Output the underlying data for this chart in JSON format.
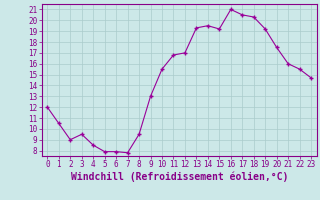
{
  "x": [
    0,
    1,
    2,
    3,
    4,
    5,
    6,
    7,
    8,
    9,
    10,
    11,
    12,
    13,
    14,
    15,
    16,
    17,
    18,
    19,
    20,
    21,
    22,
    23
  ],
  "y": [
    12,
    10.5,
    9,
    9.5,
    8.5,
    7.9,
    7.9,
    7.8,
    9.5,
    13,
    15.5,
    16.8,
    17,
    19.3,
    19.5,
    19.2,
    21,
    20.5,
    20.3,
    19.2,
    17.5,
    16,
    15.5,
    14.7
  ],
  "line_color": "#990099",
  "marker": "+",
  "bg_color": "#cce8e8",
  "grid_color": "#aacccc",
  "xlabel": "Windchill (Refroidissement éolien,°C)",
  "xlim": [
    -0.5,
    23.5
  ],
  "ylim": [
    7.5,
    21.5
  ],
  "yticks": [
    8,
    9,
    10,
    11,
    12,
    13,
    14,
    15,
    16,
    17,
    18,
    19,
    20,
    21
  ],
  "xticks": [
    0,
    1,
    2,
    3,
    4,
    5,
    6,
    7,
    8,
    9,
    10,
    11,
    12,
    13,
    14,
    15,
    16,
    17,
    18,
    19,
    20,
    21,
    22,
    23
  ],
  "tick_label_fontsize": 5.5,
  "xlabel_fontsize": 7,
  "label_color": "#880088",
  "axis_color": "#880088",
  "spine_color": "#880088",
  "linewidth": 0.8,
  "markersize": 3,
  "markeredgewidth": 1.0
}
